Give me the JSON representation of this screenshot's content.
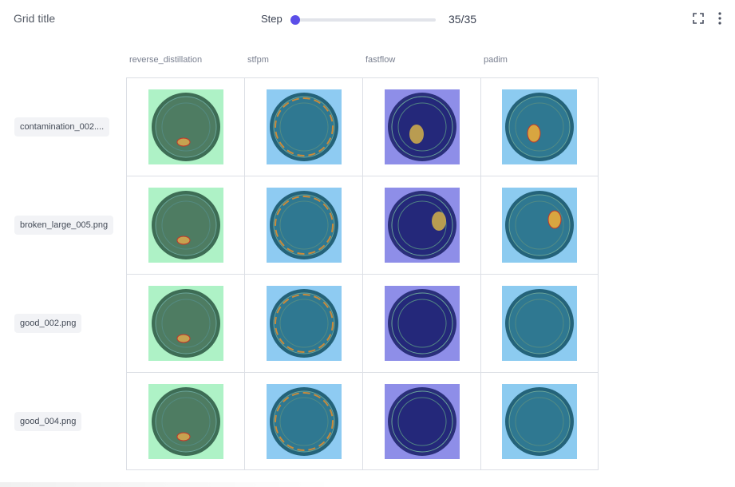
{
  "header": {
    "title": "Grid title",
    "step_label": "Step",
    "step_value": "35/35",
    "slider_fraction": 0.0,
    "accent_color": "#5b4ee8"
  },
  "icons": {
    "expand": "expand-icon",
    "more": "more-vertical-icon"
  },
  "columns": [
    "reverse_distillation",
    "stfpm",
    "fastflow",
    "padim"
  ],
  "rows": [
    {
      "label": "contamination_002....",
      "cells": [
        "reverse_distillation heatmap",
        "stfpm heatmap",
        "fastflow heatmap",
        "padim heatmap"
      ]
    },
    {
      "label": "broken_large_005.png",
      "cells": [
        "reverse_distillation heatmap",
        "stfpm heatmap",
        "fastflow heatmap",
        "padim heatmap"
      ]
    },
    {
      "label": "good_002.png",
      "cells": [
        "reverse_distillation heatmap",
        "stfpm heatmap",
        "fastflow heatmap",
        "padim heatmap"
      ]
    },
    {
      "label": "good_004.png",
      "cells": [
        "reverse_distillation heatmap",
        "stfpm heatmap",
        "fastflow heatmap",
        "padim heatmap"
      ]
    }
  ],
  "palette": {
    "reverse_distillation": "#aef2c6",
    "stfpm": "#8ecbf2",
    "fastflow": "#8e8ee8",
    "padim": "#8ccbf0"
  }
}
